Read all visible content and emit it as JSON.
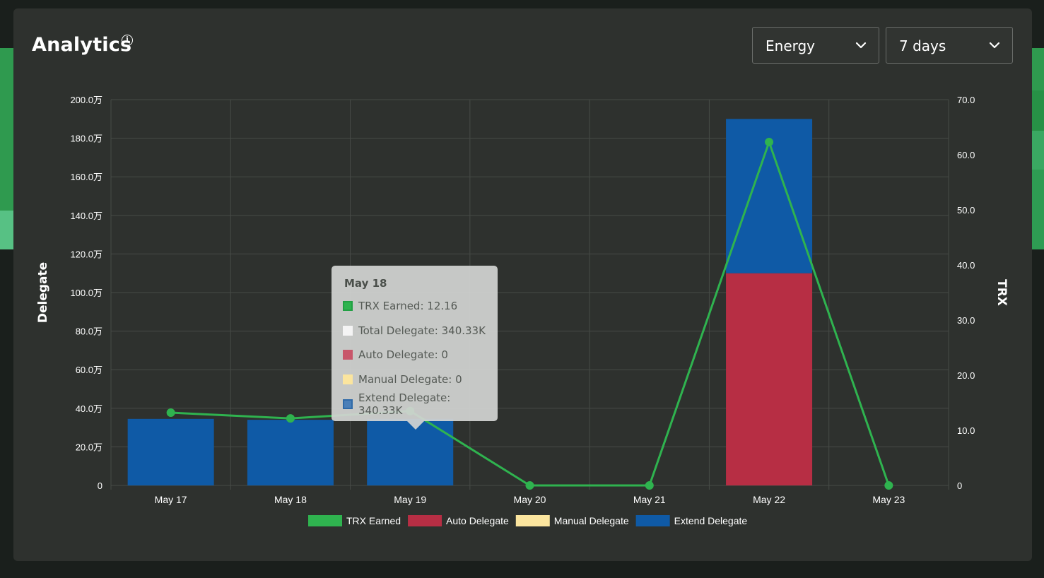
{
  "card": {
    "title": "Analytics",
    "info_icon": "info-circle-icon"
  },
  "filters": {
    "resource": {
      "value": "Energy",
      "icon": "chevron-down-icon"
    },
    "range": {
      "value": "7 days",
      "icon": "chevron-down-icon"
    }
  },
  "chart_data": {
    "type": "bar",
    "categories": [
      "May 17",
      "May 18",
      "May 19",
      "May 20",
      "May 21",
      "May 22",
      "May 23"
    ],
    "y_left": {
      "label": "Delegate",
      "ticks": [
        "0",
        "20.0万",
        "40.0万",
        "60.0万",
        "80.0万",
        "100.0万",
        "120.0万",
        "140.0万",
        "160.0万",
        "180.0万",
        "200.0万"
      ],
      "range": [
        0,
        2000000
      ]
    },
    "y_right": {
      "label": "TRX",
      "ticks": [
        "0",
        "10.0",
        "20.0",
        "30.0",
        "40.0",
        "50.0",
        "60.0",
        "70.0"
      ],
      "range": [
        0,
        70
      ]
    },
    "series": [
      {
        "name": "TRX Earned",
        "type": "line",
        "axis": "right",
        "color": "#2fb34f",
        "values": [
          13.2,
          12.16,
          13.5,
          0,
          0,
          62.3,
          0
        ]
      },
      {
        "name": "Auto Delegate",
        "type": "bar",
        "axis": "left",
        "color": "#b72e44",
        "values": [
          0,
          0,
          0,
          0,
          0,
          1100000,
          0
        ]
      },
      {
        "name": "Manual Delegate",
        "type": "bar",
        "axis": "left",
        "color": "#fbe59e",
        "values": [
          0,
          0,
          0,
          0,
          0,
          0,
          0
        ]
      },
      {
        "name": "Extend Delegate",
        "type": "bar",
        "axis": "left",
        "color": "#0f5aa6",
        "values": [
          345000,
          340330,
          345000,
          0,
          0,
          800000,
          0
        ]
      }
    ],
    "grid": true,
    "legend_position": "bottom"
  },
  "tooltip": {
    "title": "May 18",
    "rows": [
      {
        "label": "TRX Earned: 12.16",
        "color": "#2fb34f",
        "border": "#22a044"
      },
      {
        "label": "Total Delegate: 340.33K",
        "color": "#f4f4f4",
        "border": "#f4f4f4"
      },
      {
        "label": "Auto Delegate: 0",
        "color": "#c8566a",
        "border": "#c8566a"
      },
      {
        "label": "Manual Delegate: 0",
        "color": "#fbe59e",
        "border": "#fbe59e"
      },
      {
        "label": "Extend Delegate: 340.33K",
        "color": "#4a7fb8",
        "border": "#2f6aa8"
      }
    ]
  }
}
